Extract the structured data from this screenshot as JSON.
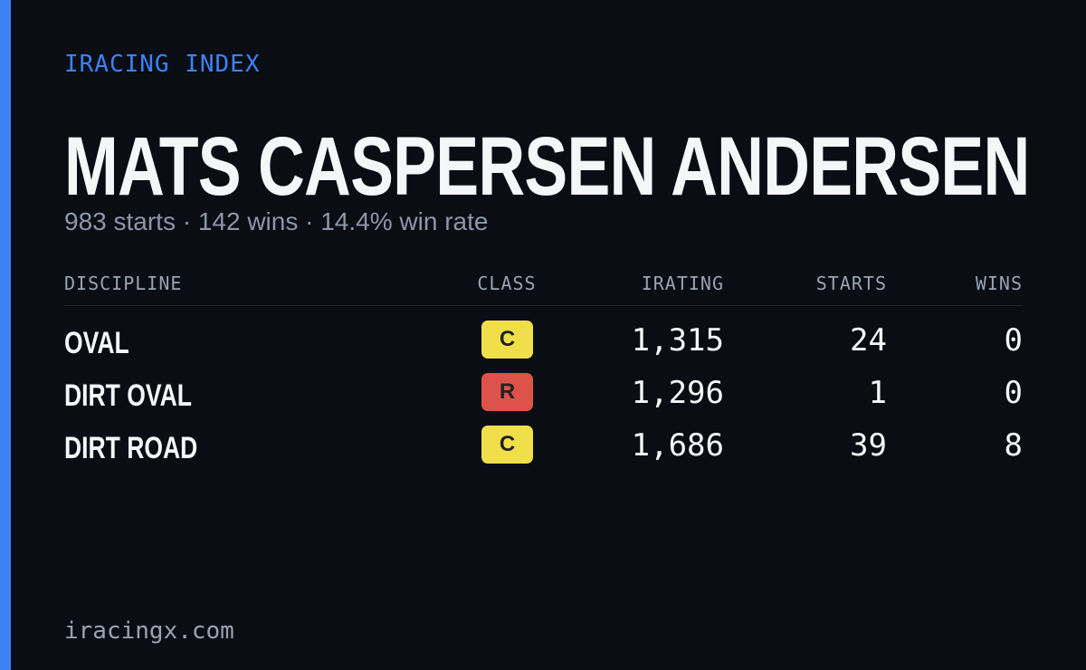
{
  "header": {
    "brand": "IRACING INDEX",
    "name": "MATS CASPERSEN ANDERSEN",
    "summary": "983 starts · 142 wins · 14.4% win rate"
  },
  "table": {
    "columns": [
      "DISCIPLINE",
      "CLASS",
      "IRATING",
      "STARTS",
      "WINS"
    ],
    "rows": [
      {
        "discipline": "OVAL",
        "class": "C",
        "class_color": "#f0df4a",
        "irating": "1,315",
        "starts": "24",
        "wins": "0"
      },
      {
        "discipline": "DIRT OVAL",
        "class": "R",
        "class_color": "#dd5249",
        "irating": "1,296",
        "starts": "1",
        "wins": "0"
      },
      {
        "discipline": "DIRT ROAD",
        "class": "C",
        "class_color": "#f0df4a",
        "irating": "1,686",
        "starts": "39",
        "wins": "8"
      }
    ]
  },
  "footer": "iracingx.com"
}
